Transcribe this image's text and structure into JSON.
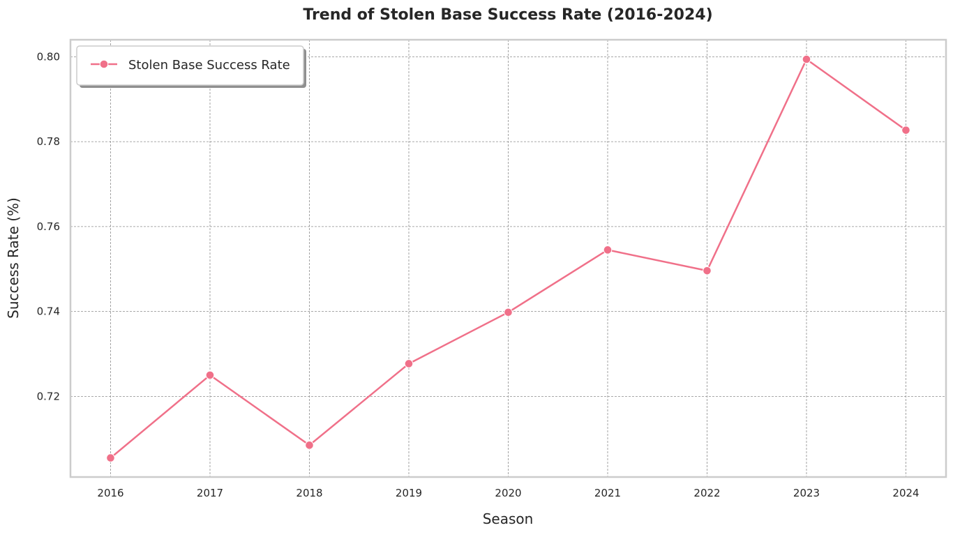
{
  "chart_data": {
    "type": "line",
    "title": "Trend of Stolen Base Success Rate (2016-2024)",
    "xlabel": "Season",
    "ylabel": "Success Rate (%)",
    "x": [
      "2016",
      "2017",
      "2018",
      "2019",
      "2020",
      "2021",
      "2022",
      "2023",
      "2024"
    ],
    "series": [
      {
        "name": "Stolen Base Success Rate",
        "values": [
          0.7055,
          0.725,
          0.7085,
          0.7277,
          0.7398,
          0.7545,
          0.7496,
          0.7994,
          0.7827
        ],
        "color": "#f07089"
      }
    ],
    "yticks": [
      "0.72",
      "0.74",
      "0.76",
      "0.78",
      "0.80"
    ],
    "ylim": [
      0.701,
      0.804
    ],
    "grid": true,
    "legend_position": "top-left",
    "colors": {
      "grid": "#8c8c8c",
      "frame": "#cccccc",
      "text": "#262626"
    }
  }
}
